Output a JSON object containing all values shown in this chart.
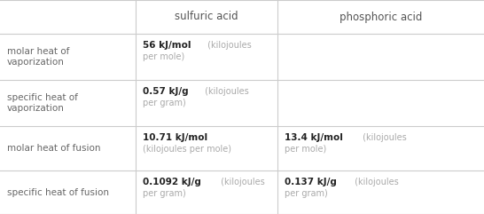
{
  "col_headers": [
    "",
    "sulfuric acid",
    "phosphoric acid"
  ],
  "rows": [
    {
      "label": "molar heat of\nvaporization",
      "sulfuric_bold": "56 kJ/mol",
      "sulfuric_light": " (kilojoules\nper mole)",
      "phosphoric_bold": "",
      "phosphoric_light": ""
    },
    {
      "label": "specific heat of\nvaporization",
      "sulfuric_bold": "0.57 kJ/g",
      "sulfuric_light": " (kilojoules\nper gram)",
      "phosphoric_bold": "",
      "phosphoric_light": ""
    },
    {
      "label": "molar heat of fusion",
      "sulfuric_bold": "10.71 kJ/mol",
      "sulfuric_light": "\n(kilojoules per mole)",
      "phosphoric_bold": "13.4 kJ/mol",
      "phosphoric_light": " (kilojoules\nper mole)"
    },
    {
      "label": "specific heat of fusion",
      "sulfuric_bold": "0.1092 kJ/g",
      "sulfuric_light": " (kilojoules\nper gram)",
      "phosphoric_bold": "0.137 kJ/g",
      "phosphoric_light": " (kilojoules\nper gram)"
    }
  ],
  "bg_color": "#ffffff",
  "grid_color": "#cccccc",
  "label_color": "#666666",
  "bold_color": "#222222",
  "light_color": "#aaaaaa",
  "header_color": "#555555",
  "figsize": [
    5.46,
    2.41
  ],
  "dpi": 100
}
